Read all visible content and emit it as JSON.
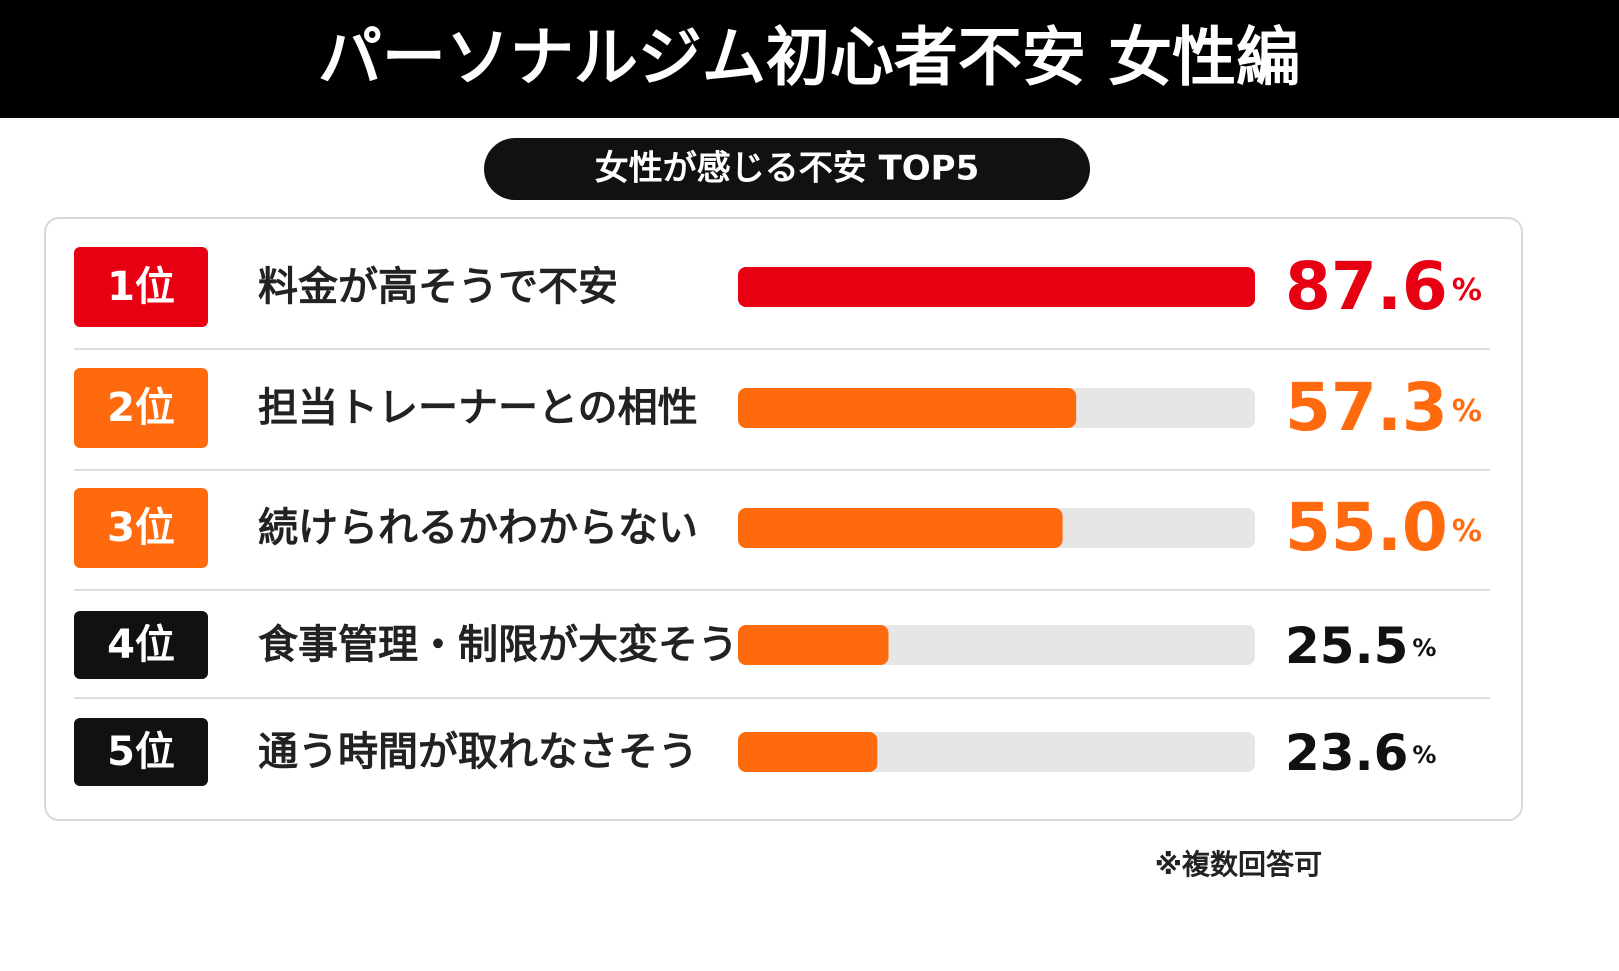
{
  "chart_data": {
    "type": "bar",
    "orientation": "horizontal",
    "title": "パーソナルジム初心者不安 女性編",
    "subtitle": "女性が感じる不安 TOP5",
    "ranks": [
      "1位",
      "2位",
      "3位",
      "4位",
      "5位"
    ],
    "categories": [
      "料金が高そうで不安",
      "担当トレーナーとの相性",
      "続けられるかわからない",
      "食事管理・制限が大変そう",
      "通う時間が取れなさそう"
    ],
    "values": [
      87.6,
      57.3,
      55.0,
      25.5,
      23.6
    ],
    "value_labels": [
      "87.6%",
      "57.3%",
      "55.0%",
      "25.5%",
      "23.6%"
    ],
    "colors": [
      "#e60012",
      "#ff6a0f",
      "#ff6a0f",
      "#ff6a0f",
      "#ff6a0f"
    ],
    "rank_colors": [
      "#e60012",
      "#ff6a0f",
      "#ff6a0f",
      "#111111",
      "#111111"
    ],
    "label_colors": [
      "#e60012",
      "#ff6a0f",
      "#ff6a0f",
      "#111111",
      "#111111"
    ],
    "xlim": [
      0,
      87.6
    ],
    "note": "※複数回答可"
  }
}
